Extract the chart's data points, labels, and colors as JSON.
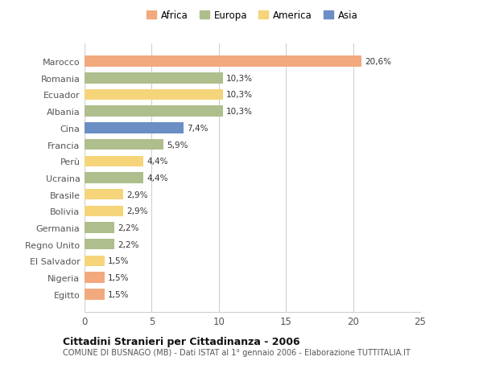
{
  "countries": [
    "Marocco",
    "Romania",
    "Ecuador",
    "Albania",
    "Cina",
    "Francia",
    "Perù",
    "Ucraina",
    "Brasile",
    "Bolivia",
    "Germania",
    "Regno Unito",
    "El Salvador",
    "Nigeria",
    "Egitto"
  ],
  "values": [
    20.6,
    10.3,
    10.3,
    10.3,
    7.4,
    5.9,
    4.4,
    4.4,
    2.9,
    2.9,
    2.2,
    2.2,
    1.5,
    1.5,
    1.5
  ],
  "labels": [
    "20,6%",
    "10,3%",
    "10,3%",
    "10,3%",
    "7,4%",
    "5,9%",
    "4,4%",
    "4,4%",
    "2,9%",
    "2,9%",
    "2,2%",
    "2,2%",
    "1,5%",
    "1,5%",
    "1,5%"
  ],
  "continents": [
    "Africa",
    "Europa",
    "America",
    "Europa",
    "Asia",
    "Europa",
    "America",
    "Europa",
    "America",
    "America",
    "Europa",
    "Europa",
    "America",
    "Africa",
    "Africa"
  ],
  "colors": {
    "Africa": "#F2A97E",
    "Europa": "#AEBE8C",
    "America": "#F5D47A",
    "Asia": "#6B8EC4"
  },
  "xlim": [
    0,
    25
  ],
  "xticks": [
    0,
    5,
    10,
    15,
    20,
    25
  ],
  "title_bold": "Cittadini Stranieri per Cittadinanza - 2006",
  "subtitle": "COMUNE DI BUSNAGO (MB) - Dati ISTAT al 1° gennaio 2006 - Elaborazione TUTTITALIA.IT",
  "background_color": "#ffffff",
  "grid_color": "#cccccc",
  "bar_height": 0.65,
  "legend_order": [
    "Africa",
    "Europa",
    "America",
    "Asia"
  ]
}
